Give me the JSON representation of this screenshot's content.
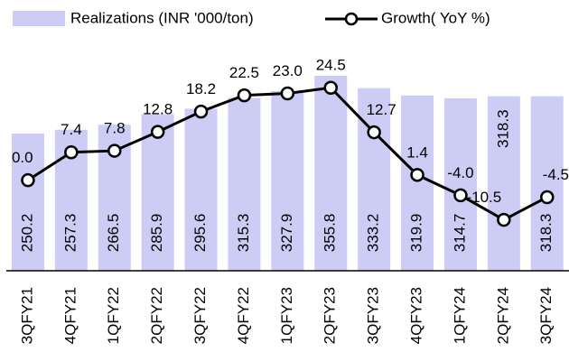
{
  "chart_data": {
    "type": "bar_line",
    "categories": [
      "3QFY21",
      "4QFY21",
      "1QFY22",
      "2QFY22",
      "3QFY22",
      "4QFY22",
      "1QFY23",
      "2QFY23",
      "3QFY23",
      "4QFY23",
      "1QFY24",
      "2QFY24",
      "3QFY24"
    ],
    "series": [
      {
        "name": "Realizations (INR '000/ton)",
        "type": "bar",
        "color": "#ccccf4",
        "values": [
          250.2,
          257.3,
          266.5,
          285.9,
          295.6,
          315.3,
          327.9,
          355.8,
          333.2,
          319.9,
          314.7,
          318.3,
          318.3
        ]
      },
      {
        "name": "Growth( YoY %)",
        "type": "line",
        "axis": "y2",
        "color": "#000000",
        "values": [
          0.0,
          7.4,
          7.8,
          12.8,
          18.2,
          22.5,
          23.0,
          24.5,
          12.7,
          1.4,
          -4.0,
          -10.5,
          -4.5
        ],
        "value_labels": [
          "0.0",
          "7.4",
          "7.8",
          "12.8",
          "18.2",
          "22.5",
          "23.0",
          "24.5",
          "12.7",
          "1.4",
          "-4.0",
          "-10.5",
          "-4.5"
        ]
      }
    ],
    "ylim": [
      0,
      420
    ],
    "y2lim": [
      -24,
      37
    ],
    "legend": "top"
  }
}
